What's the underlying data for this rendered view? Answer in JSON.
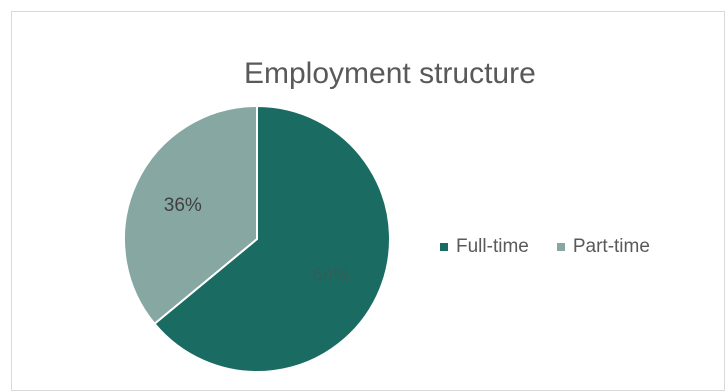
{
  "chart_data": {
    "type": "pie",
    "title": "Employment structure",
    "categories": [
      "Full-time",
      "Part-time"
    ],
    "values": [
      64,
      36
    ],
    "data_labels": [
      "64%",
      "36%"
    ],
    "colors": [
      "#1a6b62",
      "#87a7a2"
    ],
    "label_colors": [
      "#2f5f5a",
      "#3f3f3f"
    ],
    "legend_position": "right"
  }
}
